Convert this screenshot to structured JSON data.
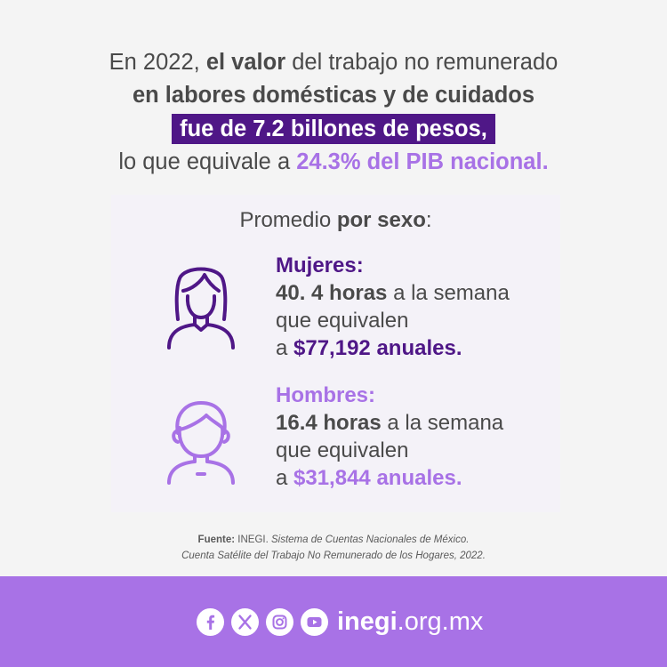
{
  "headline": {
    "l1_a": "En 2022, ",
    "l1_b": "el valor",
    "l1_c": " del trabajo no remunerado",
    "l2": "en labores domésticas y de cuidados",
    "l3": "fue de 7.2 billones de pesos,",
    "l4_a": "lo que equivale a ",
    "l4_b": "24.3% del PIB nacional."
  },
  "card": {
    "title_a": "Promedio ",
    "title_b": "por sexo",
    "title_c": ":",
    "women": {
      "label": "Mujeres:",
      "hours_bold": "40. 4 horas",
      "hours_rest": " a la semana",
      "equiv": "que equivalen",
      "amount_prefix": "a ",
      "amount": "$77,192 anuales."
    },
    "men": {
      "label": "Hombres:",
      "hours_bold": "16.4 horas",
      "hours_rest": " a la semana",
      "equiv": "que equivalen",
      "amount_prefix": "a ",
      "amount": "$31,844 anuales."
    }
  },
  "source": {
    "label": "Fuente:",
    "org": " INEGI. ",
    "line1_italic": "Sistema de Cuentas Nacionales de México.",
    "line2_italic": "Cuenta Satélite del Trabajo No Remunerado de los Hogares, 2022."
  },
  "footer": {
    "icons": [
      "facebook-icon",
      "x-icon",
      "instagram-icon",
      "youtube-icon"
    ],
    "site_bold": "inegi",
    "site_rest": ".org.mx"
  },
  "colors": {
    "dark_purple": "#4f1787",
    "light_purple": "#a872e6",
    "text_gray": "#4a4a4a",
    "card_bg": "#f4f2f8",
    "page_bg": "#f4f4f4"
  }
}
